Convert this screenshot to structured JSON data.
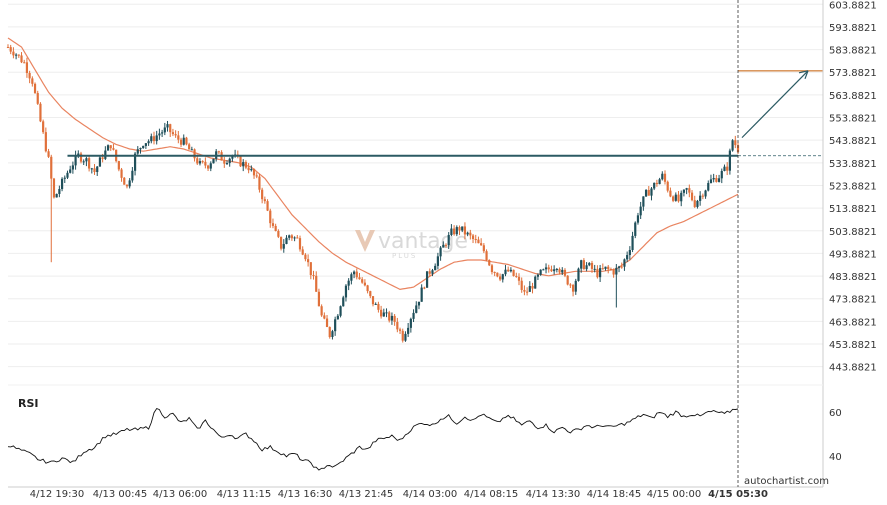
{
  "chart_data": [
    {
      "type": "candlestick",
      "title": "",
      "ylim": [
        438,
        604
      ],
      "y_ticks": [
        "603.8821",
        "593.8821",
        "583.8821",
        "573.8821",
        "563.8821",
        "553.8821",
        "543.8821",
        "533.8821",
        "523.8821",
        "513.8821",
        "503.8821",
        "493.8821",
        "483.8821",
        "473.8821",
        "463.8821",
        "453.8821",
        "443.8821"
      ],
      "y_tick_values": [
        603.8821,
        593.8821,
        583.8821,
        573.8821,
        563.8821,
        553.8821,
        543.8821,
        533.8821,
        523.8821,
        513.8821,
        503.8821,
        493.8821,
        483.8821,
        473.8821,
        463.8821,
        453.8821,
        443.8821
      ],
      "x_ticks": [
        "4/12 19:30",
        "4/13 00:45",
        "4/13 06:00",
        "4/13 11:15",
        "4/13 16:30",
        "4/13 21:45",
        "4/14 03:00",
        "4/14 08:15",
        "4/14 13:30",
        "4/14 18:45",
        "4/15 00:00",
        "4/15 05:30"
      ],
      "current_time_label": "4/15 05:30",
      "support_level": 537.0,
      "support_start_time": "4/12 19:30",
      "target_level": 574.5,
      "price_anchor_points": [
        [
          0,
          585
        ],
        [
          3,
          582
        ],
        [
          6,
          578
        ],
        [
          9,
          570
        ],
        [
          12,
          552
        ],
        [
          15,
          535
        ],
        [
          17,
          518
        ],
        [
          20,
          525
        ],
        [
          23,
          532
        ],
        [
          26,
          537
        ],
        [
          29,
          535
        ],
        [
          32,
          530
        ],
        [
          35,
          537
        ],
        [
          38,
          542
        ],
        [
          41,
          531
        ],
        [
          44,
          523
        ],
        [
          47,
          537
        ],
        [
          50,
          543
        ],
        [
          53,
          544
        ],
        [
          56,
          547
        ],
        [
          59,
          549
        ],
        [
          62,
          545
        ],
        [
          65,
          543
        ],
        [
          68,
          538
        ],
        [
          71,
          533
        ],
        [
          74,
          533
        ],
        [
          77,
          538
        ],
        [
          80,
          535
        ],
        [
          83,
          537
        ],
        [
          86,
          534
        ],
        [
          89,
          532
        ],
        [
          92,
          526
        ],
        [
          95,
          516
        ],
        [
          98,
          505
        ],
        [
          101,
          497
        ],
        [
          104,
          502
        ],
        [
          107,
          500
        ],
        [
          110,
          493
        ],
        [
          113,
          482
        ],
        [
          116,
          466
        ],
        [
          119,
          458
        ],
        [
          122,
          468
        ],
        [
          125,
          480
        ],
        [
          128,
          486
        ],
        [
          131,
          481
        ],
        [
          134,
          474
        ],
        [
          137,
          469
        ],
        [
          140,
          466
        ],
        [
          143,
          464
        ],
        [
          146,
          457
        ],
        [
          149,
          466
        ],
        [
          152,
          474
        ],
        [
          155,
          484
        ],
        [
          158,
          490
        ],
        [
          161,
          497
        ],
        [
          164,
          503
        ],
        [
          167,
          505
        ],
        [
          170,
          502
        ],
        [
          173,
          499
        ],
        [
          176,
          495
        ],
        [
          179,
          487
        ],
        [
          182,
          484
        ],
        [
          185,
          486
        ],
        [
          188,
          483
        ],
        [
          191,
          476
        ],
        [
          194,
          480
        ],
        [
          197,
          485
        ],
        [
          200,
          487
        ],
        [
          203,
          489
        ],
        [
          206,
          483
        ],
        [
          209,
          479
        ],
        [
          212,
          489
        ],
        [
          215,
          488
        ],
        [
          218,
          485
        ],
        [
          221,
          487
        ],
        [
          224,
          486
        ],
        [
          227,
          488
        ],
        [
          230,
          497
        ],
        [
          233,
          512
        ],
        [
          236,
          520
        ],
        [
          239,
          524
        ],
        [
          242,
          528
        ],
        [
          245,
          520
        ],
        [
          248,
          517
        ],
        [
          251,
          522
        ],
        [
          254,
          516
        ],
        [
          257,
          521
        ],
        [
          260,
          526
        ],
        [
          263,
          528
        ],
        [
          266,
          532
        ],
        [
          268,
          544
        ],
        [
          270,
          540
        ]
      ],
      "ma_anchor_points": [
        [
          0,
          589
        ],
        [
          5,
          585
        ],
        [
          10,
          575
        ],
        [
          15,
          565
        ],
        [
          20,
          558
        ],
        [
          25,
          553
        ],
        [
          30,
          549
        ],
        [
          35,
          545
        ],
        [
          40,
          542
        ],
        [
          45,
          540
        ],
        [
          50,
          539
        ],
        [
          55,
          540
        ],
        [
          60,
          541
        ],
        [
          65,
          540
        ],
        [
          70,
          538
        ],
        [
          75,
          536
        ],
        [
          80,
          535
        ],
        [
          85,
          534
        ],
        [
          90,
          532
        ],
        [
          95,
          527
        ],
        [
          100,
          519
        ],
        [
          105,
          511
        ],
        [
          110,
          505
        ],
        [
          115,
          499
        ],
        [
          120,
          494
        ],
        [
          125,
          490
        ],
        [
          130,
          487
        ],
        [
          135,
          484
        ],
        [
          140,
          481
        ],
        [
          145,
          478
        ],
        [
          150,
          479
        ],
        [
          155,
          483
        ],
        [
          160,
          487
        ],
        [
          165,
          490
        ],
        [
          170,
          491
        ],
        [
          175,
          491
        ],
        [
          180,
          490
        ],
        [
          185,
          489
        ],
        [
          190,
          487
        ],
        [
          195,
          485
        ],
        [
          200,
          484
        ],
        [
          205,
          485
        ],
        [
          210,
          486
        ],
        [
          215,
          486
        ],
        [
          220,
          486
        ],
        [
          225,
          487
        ],
        [
          230,
          491
        ],
        [
          235,
          497
        ],
        [
          240,
          503
        ],
        [
          245,
          506
        ],
        [
          250,
          508
        ],
        [
          255,
          511
        ],
        [
          260,
          514
        ],
        [
          265,
          517
        ],
        [
          270,
          520
        ]
      ]
    },
    {
      "type": "line",
      "title": "RSI",
      "ylim": [
        30,
        70
      ],
      "y_ticks": [
        "60",
        "40"
      ],
      "y_tick_values": [
        60,
        40
      ],
      "rsi_anchor_points": [
        [
          0,
          45
        ],
        [
          4,
          43
        ],
        [
          8,
          41
        ],
        [
          12,
          38
        ],
        [
          16,
          37
        ],
        [
          20,
          39
        ],
        [
          24,
          37
        ],
        [
          28,
          42
        ],
        [
          32,
          44
        ],
        [
          36,
          49
        ],
        [
          40,
          50
        ],
        [
          44,
          52
        ],
        [
          48,
          52
        ],
        [
          52,
          53
        ],
        [
          55,
          62
        ],
        [
          58,
          58
        ],
        [
          61,
          59
        ],
        [
          64,
          55
        ],
        [
          67,
          57
        ],
        [
          70,
          52
        ],
        [
          73,
          56
        ],
        [
          76,
          52
        ],
        [
          79,
          48
        ],
        [
          82,
          50
        ],
        [
          85,
          48
        ],
        [
          88,
          50
        ],
        [
          91,
          47
        ],
        [
          94,
          43
        ],
        [
          97,
          44
        ],
        [
          100,
          42
        ],
        [
          103,
          40
        ],
        [
          106,
          41
        ],
        [
          109,
          38
        ],
        [
          112,
          37
        ],
        [
          115,
          33
        ],
        [
          118,
          36
        ],
        [
          121,
          35
        ],
        [
          124,
          38
        ],
        [
          127,
          41
        ],
        [
          130,
          44
        ],
        [
          133,
          43
        ],
        [
          136,
          47
        ],
        [
          139,
          48
        ],
        [
          142,
          49
        ],
        [
          145,
          47
        ],
        [
          148,
          51
        ],
        [
          151,
          54
        ],
        [
          154,
          55
        ],
        [
          157,
          54
        ],
        [
          160,
          57
        ],
        [
          163,
          58
        ],
        [
          166,
          55
        ],
        [
          169,
          58
        ],
        [
          172,
          56
        ],
        [
          175,
          59
        ],
        [
          178,
          57
        ],
        [
          181,
          55
        ],
        [
          184,
          58
        ],
        [
          187,
          57
        ],
        [
          190,
          54
        ],
        [
          193,
          56
        ],
        [
          196,
          53
        ],
        [
          199,
          54
        ],
        [
          202,
          51
        ],
        [
          205,
          53
        ],
        [
          208,
          51
        ],
        [
          211,
          52
        ],
        [
          214,
          54
        ],
        [
          217,
          53
        ],
        [
          220,
          54
        ],
        [
          223,
          53
        ],
        [
          226,
          54
        ],
        [
          229,
          55
        ],
        [
          232,
          57
        ],
        [
          235,
          59
        ],
        [
          238,
          57
        ],
        [
          241,
          60
        ],
        [
          244,
          58
        ],
        [
          247,
          60
        ],
        [
          250,
          58
        ],
        [
          253,
          59
        ],
        [
          256,
          58
        ],
        [
          259,
          60
        ],
        [
          262,
          60
        ],
        [
          265,
          59
        ],
        [
          268,
          61
        ],
        [
          270,
          62
        ]
      ]
    }
  ],
  "footer": {
    "credit": "autochartist.com"
  },
  "watermark": {
    "brand": "vantage",
    "sub": "PLUS"
  },
  "colors": {
    "candle_up": "#1f4f5a",
    "candle_down": "#e0703a",
    "moving_average": "#e98460",
    "support_line": "#2b5a63",
    "target_line": "#d58a4a",
    "rsi_line": "#111111",
    "projection_arrow": "#2b5a63",
    "axis": "#cccccc",
    "grid": "#eeeeee"
  }
}
